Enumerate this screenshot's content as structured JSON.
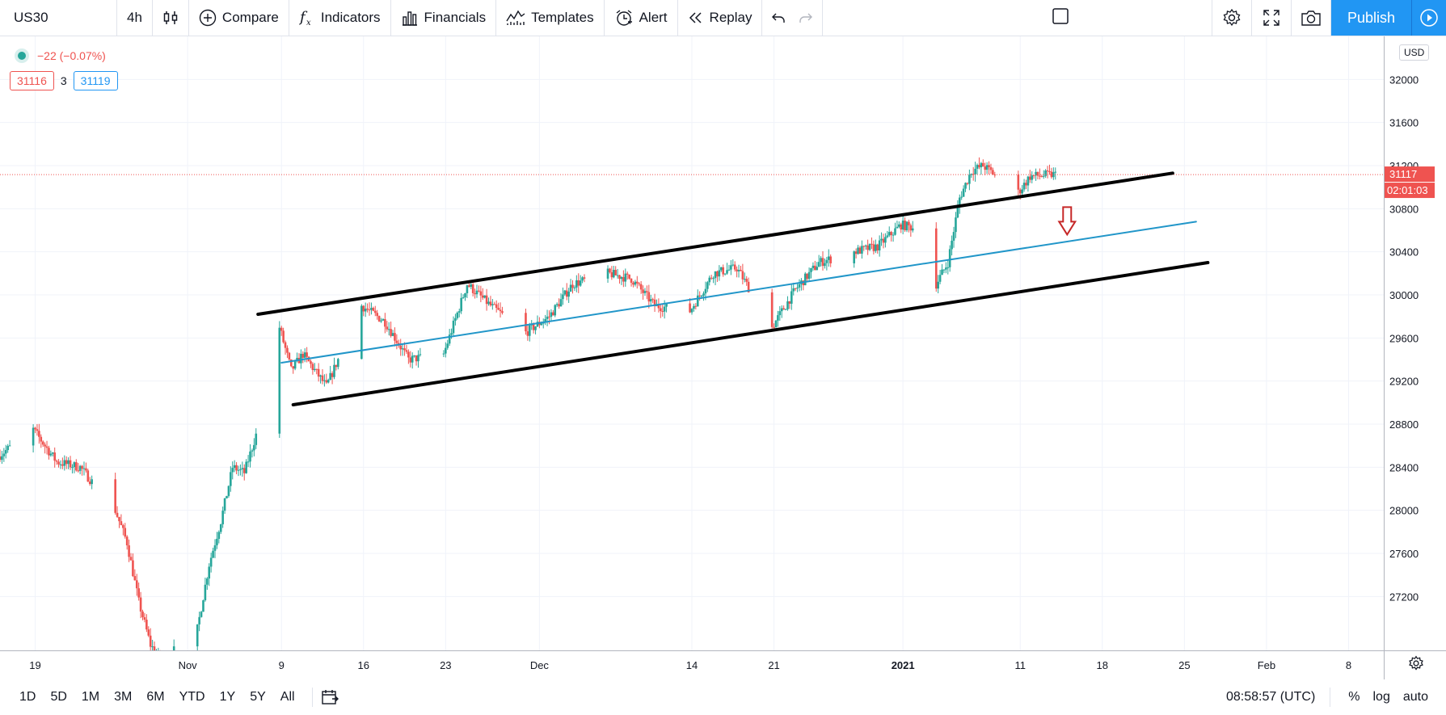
{
  "toolbar": {
    "symbol": "US30",
    "interval": "4h",
    "compare": "Compare",
    "indicators": "Indicators",
    "financials": "Financials",
    "templates": "Templates",
    "alert": "Alert",
    "replay": "Replay",
    "publish": "Publish"
  },
  "legend": {
    "change": "−22 (−0.07%)",
    "bid": "31116",
    "spread": "3",
    "ask": "31119"
  },
  "price_axis": {
    "currency": "USD",
    "last_price": "31117",
    "countdown": "02:01:03",
    "ticks": [
      "32000",
      "31600",
      "31200",
      "30800",
      "30400",
      "30000",
      "29600",
      "29200",
      "28800",
      "28400",
      "28000",
      "27600",
      "27200"
    ]
  },
  "time_axis": {
    "ticks": [
      "19",
      "Nov",
      "9",
      "16",
      "23",
      "Dec",
      "14",
      "21",
      "2021",
      "11",
      "18",
      "25",
      "Feb",
      "8"
    ]
  },
  "bottom_bar": {
    "ranges": [
      "1D",
      "5D",
      "1M",
      "3M",
      "6M",
      "YTD",
      "1Y",
      "5Y",
      "All"
    ],
    "clock": "08:58:57 (UTC)",
    "percent": "%",
    "log": "log",
    "auto": "auto"
  },
  "colors": {
    "up": "#26a69a",
    "down": "#ef5350",
    "channel": "#000000",
    "midline": "#2196c9",
    "arrow": "#c62828",
    "accent": "#2196f3"
  },
  "chart_data": {
    "type": "candlestick",
    "symbol": "US30",
    "interval": "4h",
    "ylim": [
      26700,
      32400
    ],
    "x_range": [
      "2020-10-16",
      "2021-02-11"
    ],
    "price_path": [
      [
        "2020-10-16",
        28500
      ],
      [
        "2020-10-19",
        28750
      ],
      [
        "2020-10-21",
        28450
      ],
      [
        "2020-10-23",
        28400
      ],
      [
        "2020-10-26",
        28000
      ],
      [
        "2020-10-27",
        27700
      ],
      [
        "2020-10-28",
        27150
      ],
      [
        "2020-10-29",
        26750
      ],
      [
        "2020-10-30",
        26600
      ],
      [
        "2020-11-02",
        26900
      ],
      [
        "2020-11-03",
        27500
      ],
      [
        "2020-11-04",
        27900
      ],
      [
        "2020-11-05",
        28400
      ],
      [
        "2020-11-06",
        28350
      ],
      [
        "2020-11-07",
        28700
      ],
      [
        "2020-11-09",
        29700
      ],
      [
        "2020-11-10",
        29300
      ],
      [
        "2020-11-11",
        29450
      ],
      [
        "2020-11-13",
        29150
      ],
      [
        "2020-11-16",
        29900
      ],
      [
        "2020-11-18",
        29750
      ],
      [
        "2020-11-20",
        29400
      ],
      [
        "2020-11-23",
        29450
      ],
      [
        "2020-11-25",
        30100
      ],
      [
        "2020-11-27",
        29900
      ],
      [
        "2020-11-30",
        29650
      ],
      [
        "2020-12-02",
        29800
      ],
      [
        "2020-12-04",
        30100
      ],
      [
        "2020-12-07",
        30200
      ],
      [
        "2020-12-09",
        30150
      ],
      [
        "2020-12-11",
        29900
      ],
      [
        "2020-12-14",
        29850
      ],
      [
        "2020-12-16",
        30200
      ],
      [
        "2020-12-18",
        30250
      ],
      [
        "2020-12-21",
        29700
      ],
      [
        "2020-12-23",
        30050
      ],
      [
        "2020-12-25",
        30300
      ],
      [
        "2020-12-28",
        30400
      ],
      [
        "2020-12-30",
        30450
      ],
      [
        "2021-01-01",
        30650
      ],
      [
        "2021-01-03",
        30600
      ],
      [
        "2021-01-04",
        30100
      ],
      [
        "2021-01-05",
        30300
      ],
      [
        "2021-01-06",
        30900
      ],
      [
        "2021-01-07",
        31150
      ],
      [
        "2021-01-08",
        31200
      ],
      [
        "2021-01-11",
        30950
      ],
      [
        "2021-01-12",
        31100
      ],
      [
        "2021-01-14",
        31117
      ]
    ],
    "drawings": {
      "channel_upper": [
        [
          "2020-11-07",
          29820
        ],
        [
          "2021-01-24",
          31130
        ]
      ],
      "channel_lower": [
        [
          "2020-11-10",
          28980
        ],
        [
          "2021-01-27",
          30300
        ]
      ],
      "mid_line": [
        [
          "2020-11-09",
          29370
        ],
        [
          "2021-01-26",
          30680
        ]
      ],
      "arrow": {
        "date": "2021-01-15",
        "price": 30560,
        "direction": "down"
      }
    },
    "last_price": 31117
  }
}
